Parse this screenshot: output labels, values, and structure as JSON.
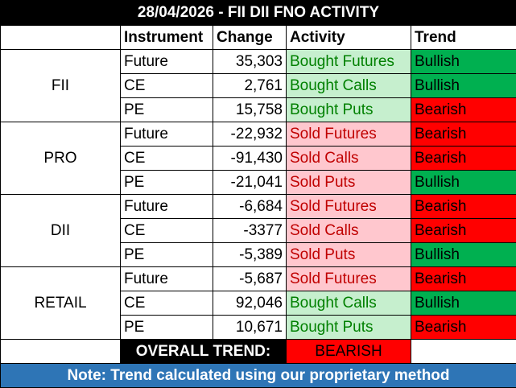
{
  "title": "28/04/2026 - FII DII FNO ACTIVITY",
  "headers": {
    "instrument": "Instrument",
    "change": "Change",
    "activity": "Activity",
    "trend": "Trend"
  },
  "colors": {
    "header_bg": "#000000",
    "header_text": "#ffffff",
    "buy_bg": "#c6efce",
    "sell_bg": "#ffc7ce",
    "bull_bg": "#00b050",
    "bear_bg": "#ff0000",
    "overall_bg": "#ff0000",
    "note_bg": "#2e75b6"
  },
  "groups": [
    {
      "name": "FII",
      "rows": [
        {
          "instrument": "Future",
          "change": "35,303",
          "activity": "Bought Futures",
          "trend": "Bullish"
        },
        {
          "instrument": "CE",
          "change": "2,761",
          "activity": "Bought Calls",
          "trend": "Bullish"
        },
        {
          "instrument": "PE",
          "change": "15,758",
          "activity": "Bought Puts",
          "trend": "Bearish"
        }
      ]
    },
    {
      "name": "PRO",
      "rows": [
        {
          "instrument": "Future",
          "change": "-22,932",
          "activity": "Sold Futures",
          "trend": "Bearish"
        },
        {
          "instrument": "CE",
          "change": "-91,430",
          "activity": "Sold Calls",
          "trend": "Bearish"
        },
        {
          "instrument": "PE",
          "change": "-21,041",
          "activity": "Sold Puts",
          "trend": "Bullish"
        }
      ]
    },
    {
      "name": "DII",
      "rows": [
        {
          "instrument": "Future",
          "change": "-6,684",
          "activity": "Sold Futures",
          "trend": "Bearish"
        },
        {
          "instrument": "CE",
          "change": "-3377",
          "activity": "Sold Calls",
          "trend": "Bearish"
        },
        {
          "instrument": "PE",
          "change": "-5,389",
          "activity": "Sold Puts",
          "trend": "Bullish"
        }
      ]
    },
    {
      "name": "RETAIL",
      "rows": [
        {
          "instrument": "Future",
          "change": "-5,687",
          "activity": "Sold Futures",
          "trend": "Bearish"
        },
        {
          "instrument": "CE",
          "change": "92,046",
          "activity": "Bought Calls",
          "trend": "Bullish"
        },
        {
          "instrument": "PE",
          "change": "10,671",
          "activity": "Bought Puts",
          "trend": "Bearish"
        }
      ]
    }
  ],
  "overall": {
    "label": "OVERALL TREND:",
    "value": "BEARISH"
  },
  "note": "Note: Trend calculated using our proprietary method"
}
